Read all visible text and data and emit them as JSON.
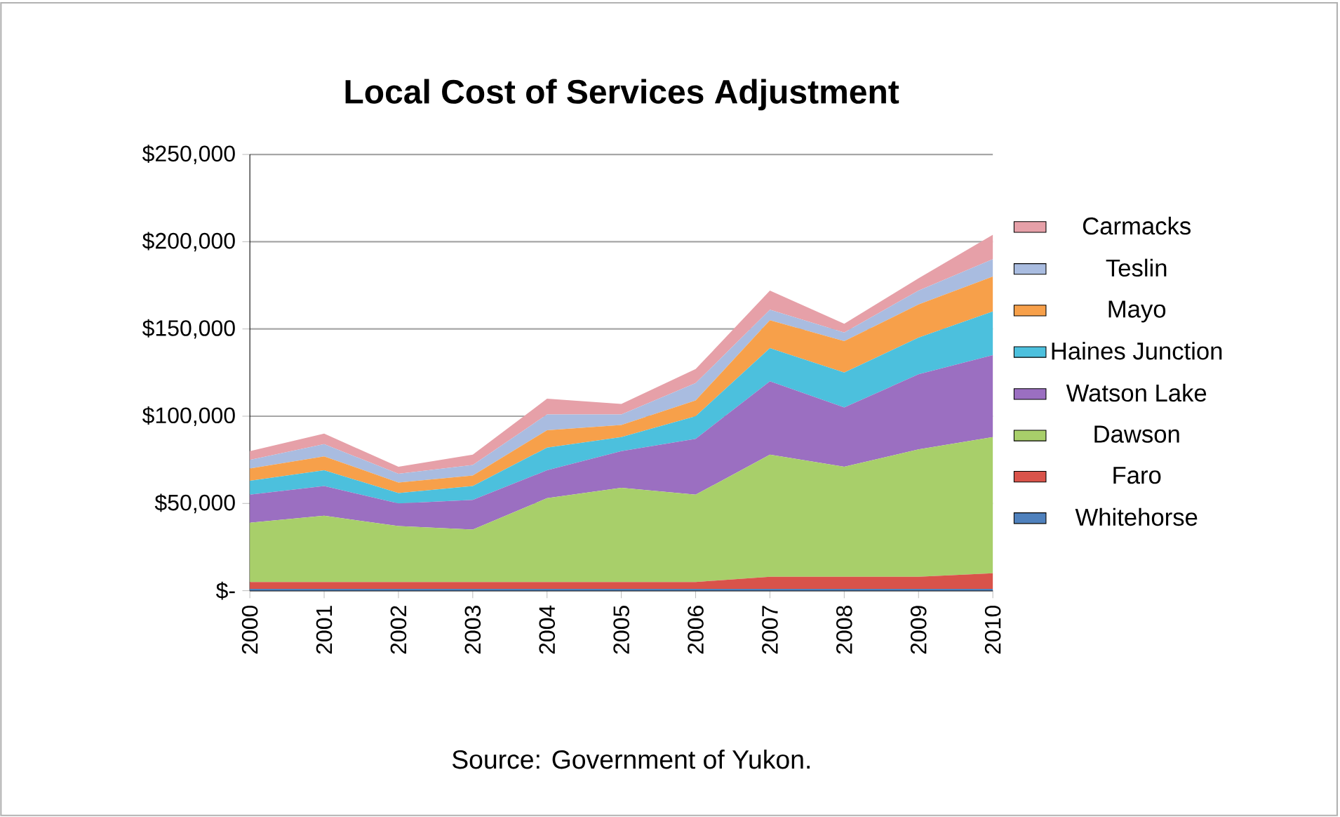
{
  "chart_data": {
    "type": "area",
    "stacked": true,
    "title": "Local Cost of Services Adjustment",
    "annotations": [
      "Source: Government of Yukon."
    ],
    "x": [
      2000,
      2001,
      2002,
      2003,
      2004,
      2005,
      2006,
      2007,
      2008,
      2009,
      2010
    ],
    "xlim": [
      2000,
      2010
    ],
    "xticks": [
      2000,
      2001,
      2002,
      2003,
      2004,
      2005,
      2006,
      2007,
      2008,
      2009,
      2010
    ],
    "ylim": [
      0,
      250000
    ],
    "yticks": [
      {
        "value": 0,
        "label": "$-"
      },
      {
        "value": 50000,
        "label": "$50,000"
      },
      {
        "value": 100000,
        "label": "$100,000"
      },
      {
        "value": 150000,
        "label": "$150,000"
      },
      {
        "value": 200000,
        "label": "$200,000"
      },
      {
        "value": 250000,
        "label": "$250,000"
      }
    ],
    "grid": "y",
    "legend": "right",
    "series": [
      {
        "name": "Whitehorse",
        "color": "#4f81bd",
        "values": [
          1000,
          1000,
          1000,
          1000,
          1000,
          1000,
          1000,
          1000,
          1000,
          1000,
          1000
        ]
      },
      {
        "name": "Faro",
        "color": "#d9534a",
        "values": [
          4000,
          4000,
          4000,
          4000,
          4000,
          4000,
          4000,
          7000,
          7000,
          7000,
          9000
        ]
      },
      {
        "name": "Dawson",
        "color": "#a8cf6a",
        "values": [
          34000,
          38000,
          32000,
          30000,
          48000,
          54000,
          50000,
          70000,
          63000,
          73000,
          78000
        ]
      },
      {
        "name": "Watson Lake",
        "color": "#9b6fc1",
        "values": [
          16000,
          17000,
          13000,
          17000,
          16000,
          21000,
          32000,
          42000,
          34000,
          43000,
          47000
        ]
      },
      {
        "name": "Haines Junction",
        "color": "#4cc0dd",
        "values": [
          8000,
          9000,
          6000,
          8000,
          13000,
          8000,
          13000,
          19000,
          20000,
          21000,
          25000
        ]
      },
      {
        "name": "Mayo",
        "color": "#f7a04a",
        "values": [
          7000,
          8000,
          6000,
          6000,
          10000,
          7000,
          9000,
          16000,
          18000,
          19000,
          20000
        ]
      },
      {
        "name": "Teslin",
        "color": "#a9bce0",
        "values": [
          5000,
          7000,
          5000,
          6000,
          9000,
          6000,
          10000,
          6000,
          5000,
          8000,
          10000
        ]
      },
      {
        "name": "Carmacks",
        "color": "#e6a0a8",
        "values": [
          5000,
          6000,
          4000,
          6000,
          9000,
          6000,
          8000,
          11000,
          5000,
          7000,
          14000
        ]
      }
    ]
  }
}
